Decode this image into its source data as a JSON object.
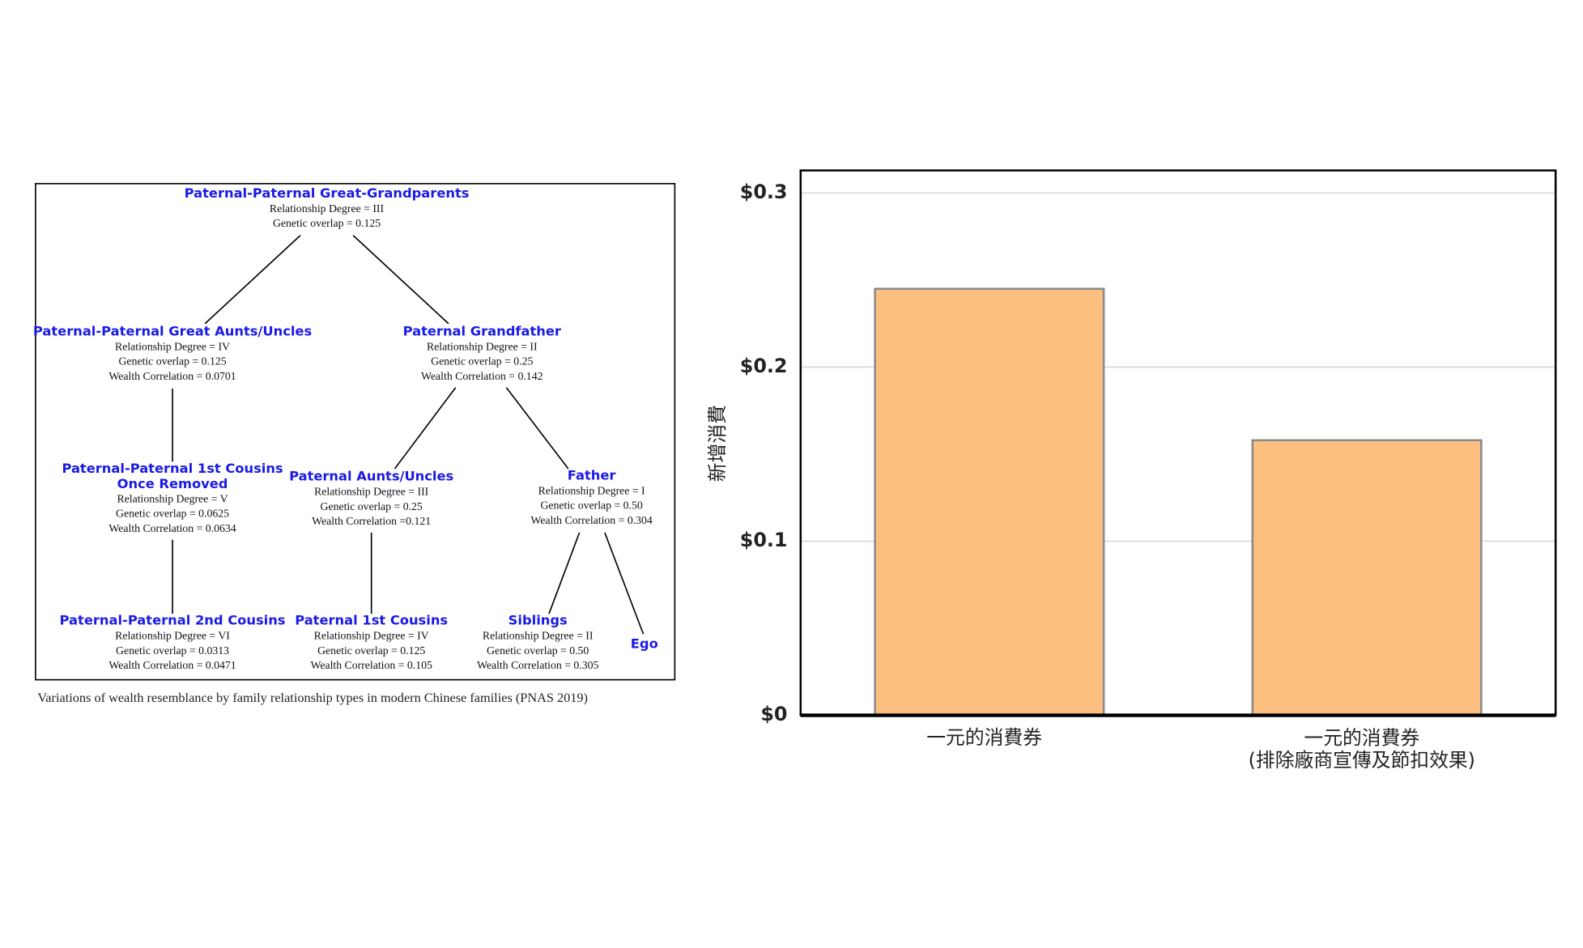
{
  "diagram": {
    "nodes": [
      {
        "title": "Paternal-Paternal Great-Grandparents",
        "lines": [
          "Relationship Degree = III",
          "Genetic overlap = 0.125"
        ]
      },
      {
        "title": "Paternal-Paternal Great Aunts/Uncles",
        "lines": [
          "Relationship Degree = IV",
          "Genetic overlap = 0.125",
          "Wealth Correlation = 0.0701"
        ]
      },
      {
        "title": "Paternal Grandfather",
        "lines": [
          "Relationship Degree = II",
          "Genetic overlap = 0.25",
          "Wealth Correlation = 0.142"
        ]
      },
      {
        "title": "Paternal-Paternal 1st Cousins\nOnce Removed",
        "lines": [
          "Relationship Degree = V",
          "Genetic overlap = 0.0625",
          "Wealth Correlation = 0.0634"
        ]
      },
      {
        "title": "Paternal Aunts/Uncles",
        "lines": [
          "Relationship Degree = III",
          "Genetic overlap = 0.25",
          "Wealth Correlation =0.121"
        ]
      },
      {
        "title": "Father",
        "lines": [
          "Relationship Degree = I",
          "Genetic overlap = 0.50",
          "Wealth Correlation = 0.304"
        ]
      },
      {
        "title": "Paternal-Paternal 2nd Cousins",
        "lines": [
          "Relationship Degree = VI",
          "Genetic overlap = 0.0313",
          "Wealth Correlation = 0.0471"
        ]
      },
      {
        "title": "Paternal 1st Cousins",
        "lines": [
          "Relationship Degree = IV",
          "Genetic overlap = 0.125",
          "Wealth Correlation = 0.105"
        ]
      },
      {
        "title": "Siblings",
        "lines": [
          "Relationship Degree = II",
          "Genetic overlap = 0.50",
          "Wealth Correlation = 0.305"
        ]
      },
      {
        "title": "Ego",
        "lines": []
      }
    ],
    "caption": "Variations of wealth resemblance by family relationship types in modern Chinese families (PNAS 2019)"
  },
  "chart_data": {
    "type": "bar",
    "categories": [
      "一元的消費券",
      "一元的消費券\n(排除廠商宣傳及節扣效果)"
    ],
    "values": [
      0.245,
      0.158
    ],
    "color": "#fdbf80",
    "y_label": "新增消費",
    "ylim": [
      0,
      0.313
    ],
    "yticks": [
      {
        "value": 0,
        "label": "$0"
      },
      {
        "value": 0.1,
        "label": "$0.1"
      },
      {
        "value": 0.2,
        "label": "$0.2"
      },
      {
        "value": 0.3,
        "label": "$0.3"
      }
    ],
    "grid": true
  }
}
